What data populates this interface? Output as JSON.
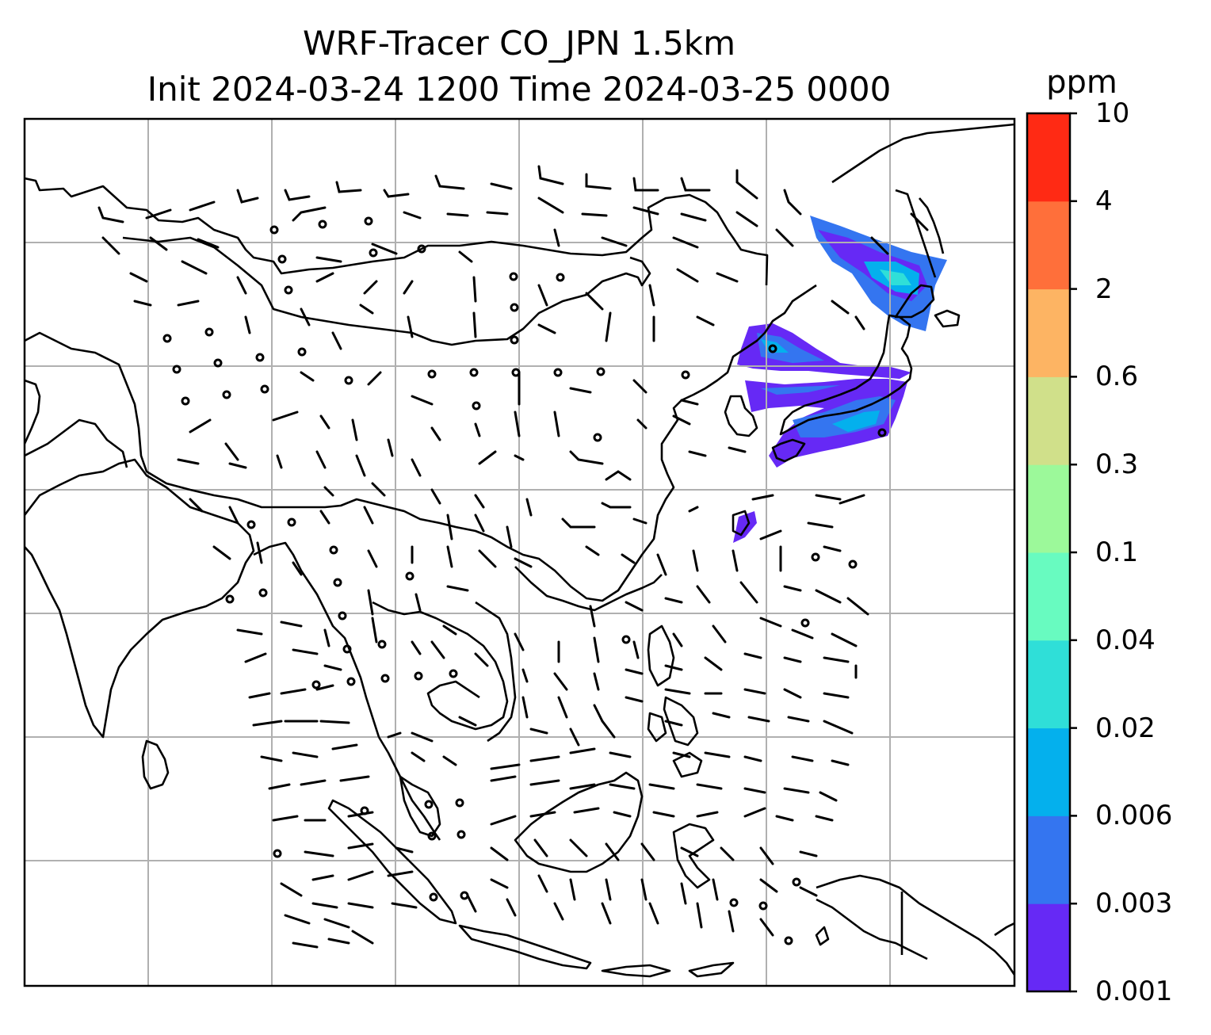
{
  "title": {
    "line1": "WRF-Tracer CO_JPN 1.5km",
    "line2": "Init 2024-03-24 1200 Time 2024-03-25 0000"
  },
  "colorbar": {
    "unit": "ppm",
    "levels": [
      "0.001",
      "0.003",
      "0.006",
      "0.02",
      "0.04",
      "0.1",
      "0.3",
      "0.6",
      "2",
      "4",
      "10"
    ],
    "colors": [
      "#6629f5",
      "#3475f0",
      "#04b0ed",
      "#2fdfd8",
      "#68fbc0",
      "#9cf99a",
      "#d0e08a",
      "#fdb463",
      "#ff6f3a",
      "#ff2a14"
    ]
  },
  "map": {
    "gridlines": true,
    "gridline_color": "#b0b0b0",
    "coastline_color": "#000000",
    "barb_color": "#000000",
    "plume_region": "Japan"
  }
}
